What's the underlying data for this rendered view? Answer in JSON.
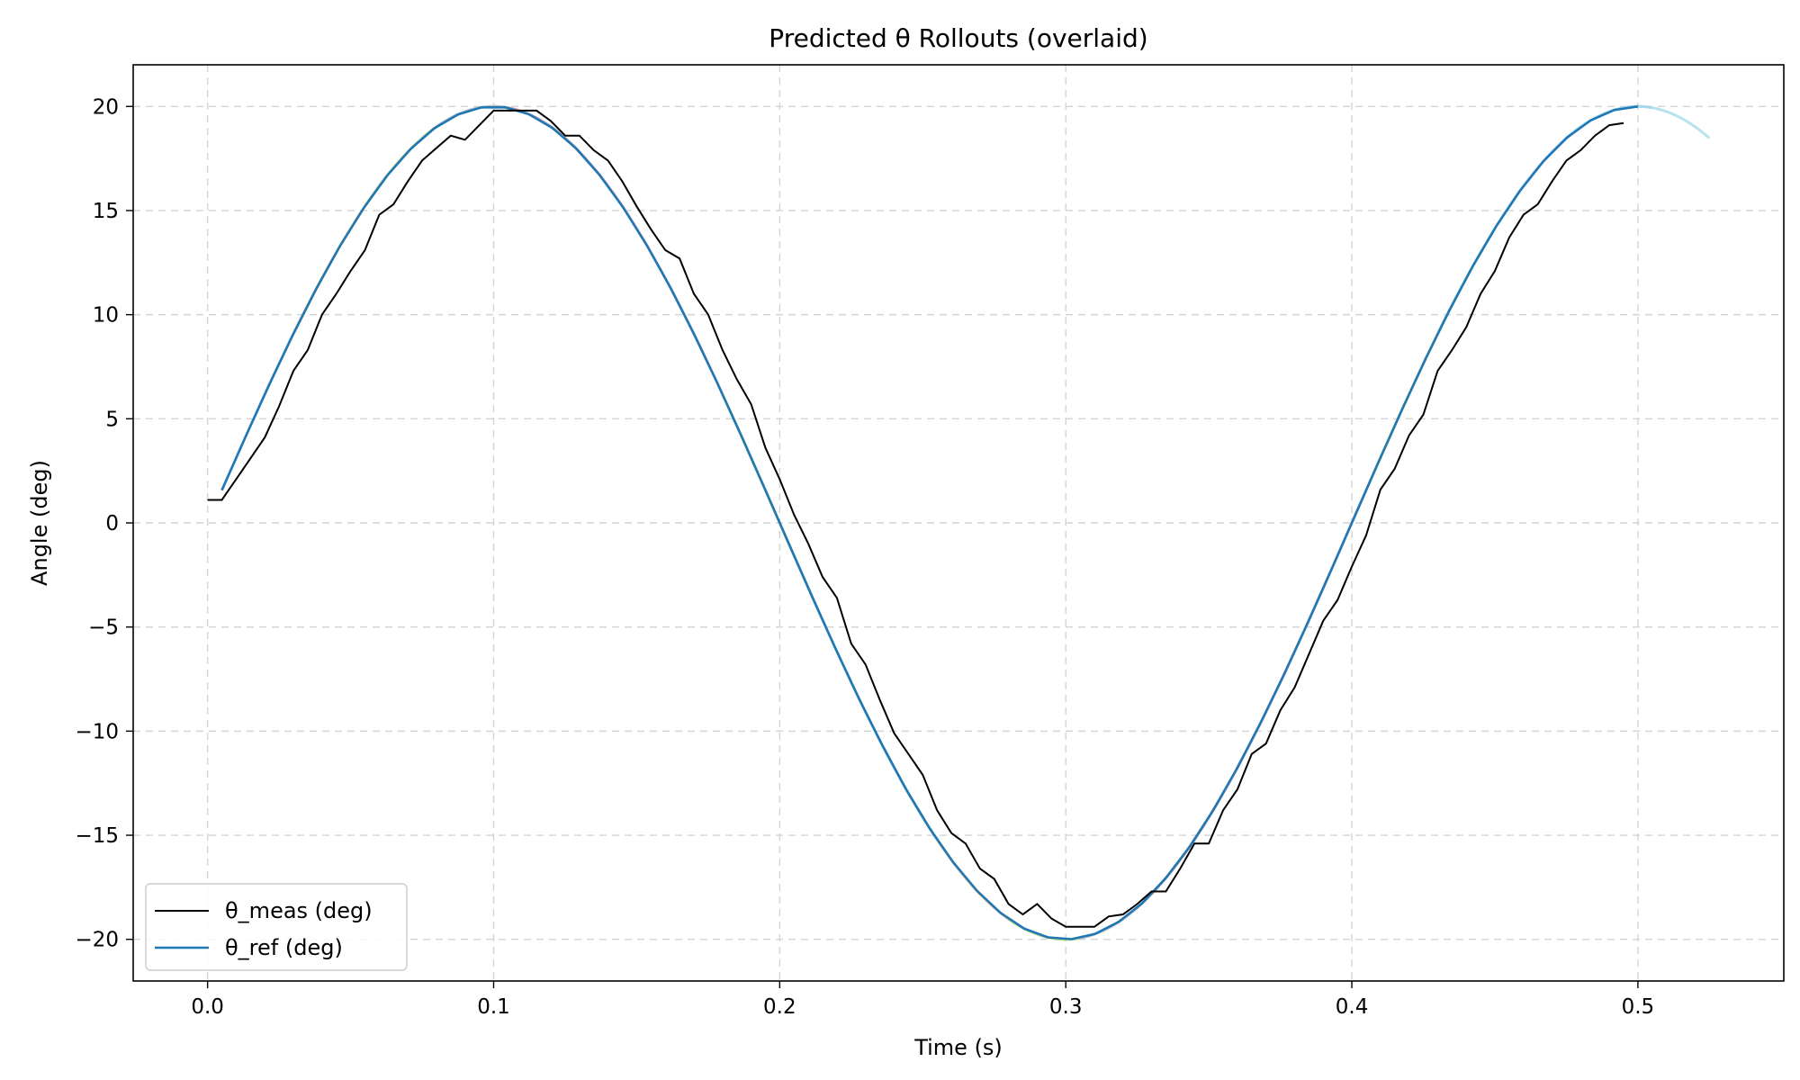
{
  "chart_data": {
    "type": "line",
    "title": "Predicted θ Rollouts (overlaid)",
    "xlabel": "Time (s)",
    "ylabel": "Angle (deg)",
    "xlim": [
      -0.026,
      0.551
    ],
    "ylim": [
      -22.0,
      22.0
    ],
    "x_ticks": [
      0.0,
      0.1,
      0.2,
      0.3,
      0.4,
      0.5
    ],
    "x_tick_labels": [
      "0.0",
      "0.1",
      "0.2",
      "0.3",
      "0.4",
      "0.5"
    ],
    "y_ticks": [
      20,
      15,
      10,
      5,
      0,
      -5,
      -10,
      -15,
      -20
    ],
    "y_tick_labels": [
      "20",
      "15",
      "10",
      "5",
      "0",
      "−5",
      "−10",
      "−15",
      "−20"
    ],
    "grid": true,
    "legend_position": "lower-left",
    "series": [
      {
        "name": "θ_meas (deg)",
        "color": "#000000",
        "x": [
          0.0,
          0.005,
          0.01,
          0.015,
          0.02,
          0.025,
          0.03,
          0.035,
          0.04,
          0.045,
          0.05,
          0.055,
          0.06,
          0.065,
          0.07,
          0.075,
          0.08,
          0.085,
          0.09,
          0.095,
          0.1,
          0.105,
          0.11,
          0.115,
          0.12,
          0.125,
          0.13,
          0.135,
          0.14,
          0.145,
          0.15,
          0.155,
          0.16,
          0.165,
          0.17,
          0.175,
          0.18,
          0.185,
          0.19,
          0.195,
          0.2,
          0.205,
          0.21,
          0.215,
          0.22,
          0.225,
          0.23,
          0.235,
          0.24,
          0.245,
          0.25,
          0.255,
          0.26,
          0.265,
          0.27,
          0.275,
          0.28,
          0.285,
          0.29,
          0.295,
          0.3,
          0.305,
          0.31,
          0.315,
          0.32,
          0.325,
          0.33,
          0.335,
          0.34,
          0.345,
          0.35,
          0.355,
          0.36,
          0.365,
          0.37,
          0.375,
          0.38,
          0.385,
          0.39,
          0.395,
          0.4,
          0.405,
          0.41,
          0.415,
          0.42,
          0.425,
          0.43,
          0.435,
          0.44,
          0.445,
          0.45,
          0.455,
          0.46,
          0.465,
          0.47,
          0.475,
          0.48,
          0.485,
          0.49,
          0.495
        ],
        "y": [
          1.1,
          1.1,
          2.1,
          3.1,
          4.1,
          5.6,
          7.3,
          8.3,
          10.0,
          11.0,
          12.1,
          13.1,
          14.8,
          15.3,
          16.4,
          17.4,
          18.0,
          18.6,
          18.4,
          19.1,
          19.8,
          19.8,
          19.8,
          19.8,
          19.3,
          18.6,
          18.6,
          17.9,
          17.4,
          16.4,
          15.2,
          14.1,
          13.1,
          12.7,
          11.0,
          10.0,
          8.3,
          6.9,
          5.7,
          3.6,
          2.1,
          0.4,
          -1.0,
          -2.6,
          -3.6,
          -5.8,
          -6.8,
          -8.5,
          -10.1,
          -11.1,
          -12.1,
          -13.8,
          -14.9,
          -15.4,
          -16.6,
          -17.1,
          -18.3,
          -18.8,
          -18.3,
          -19.0,
          -19.4,
          -19.4,
          -19.4,
          -18.9,
          -18.8,
          -18.3,
          -17.7,
          -17.7,
          -16.6,
          -15.4,
          -15.4,
          -13.8,
          -12.8,
          -11.1,
          -10.6,
          -9.0,
          -7.9,
          -6.3,
          -4.7,
          -3.7,
          -2.1,
          -0.6,
          1.6,
          2.6,
          4.2,
          5.2,
          7.3,
          8.3,
          9.4,
          11.0,
          12.1,
          13.7,
          14.8,
          15.3,
          16.4,
          17.4,
          17.9,
          18.6,
          19.1,
          19.2
        ]
      },
      {
        "name": "θ_ref (deg)",
        "color": "#1f77b4",
        "function": "20·sin(2π·2.5·(t+0.0))",
        "x_start": 0.005,
        "x_end": 0.5
      }
    ],
    "rollouts": [
      {
        "color": "#aec7e8",
        "x_start": 0.005,
        "x_end": 0.05
      },
      {
        "color": "#ffbb78",
        "x_start": 0.03,
        "x_end": 0.08
      },
      {
        "color": "#98df8a",
        "x_start": 0.055,
        "x_end": 0.105
      },
      {
        "color": "#c5b0d5",
        "x_start": 0.08,
        "x_end": 0.13
      },
      {
        "color": "#c49c94",
        "x_start": 0.105,
        "x_end": 0.155
      },
      {
        "color": "#f7b6d2",
        "x_start": 0.13,
        "x_end": 0.18
      },
      {
        "color": "#c7c7c7",
        "x_start": 0.155,
        "x_end": 0.205
      },
      {
        "color": "#dbdb8d",
        "x_start": 0.18,
        "x_end": 0.23
      },
      {
        "color": "#9edae5",
        "x_start": 0.205,
        "x_end": 0.255
      },
      {
        "color": "#aec7e8",
        "x_start": 0.23,
        "x_end": 0.28
      },
      {
        "color": "#ffbb78",
        "x_start": 0.255,
        "x_end": 0.305
      },
      {
        "color": "#98df8a",
        "x_start": 0.28,
        "x_end": 0.33
      },
      {
        "color": "#c5b0d5",
        "x_start": 0.305,
        "x_end": 0.355
      },
      {
        "color": "#c49c94",
        "x_start": 0.33,
        "x_end": 0.38
      },
      {
        "color": "#f7b6d2",
        "x_start": 0.355,
        "x_end": 0.405
      },
      {
        "color": "#c7c7c7",
        "x_start": 0.38,
        "x_end": 0.43
      },
      {
        "color": "#dbdb8d",
        "x_start": 0.405,
        "x_end": 0.455
      },
      {
        "color": "#9edae5",
        "x_start": 0.43,
        "x_end": 0.48
      },
      {
        "color": "#aec7e8",
        "x_start": 0.455,
        "x_end": 0.505
      },
      {
        "color": "#9edae5",
        "x_start": 0.475,
        "x_end": 0.525
      }
    ]
  }
}
